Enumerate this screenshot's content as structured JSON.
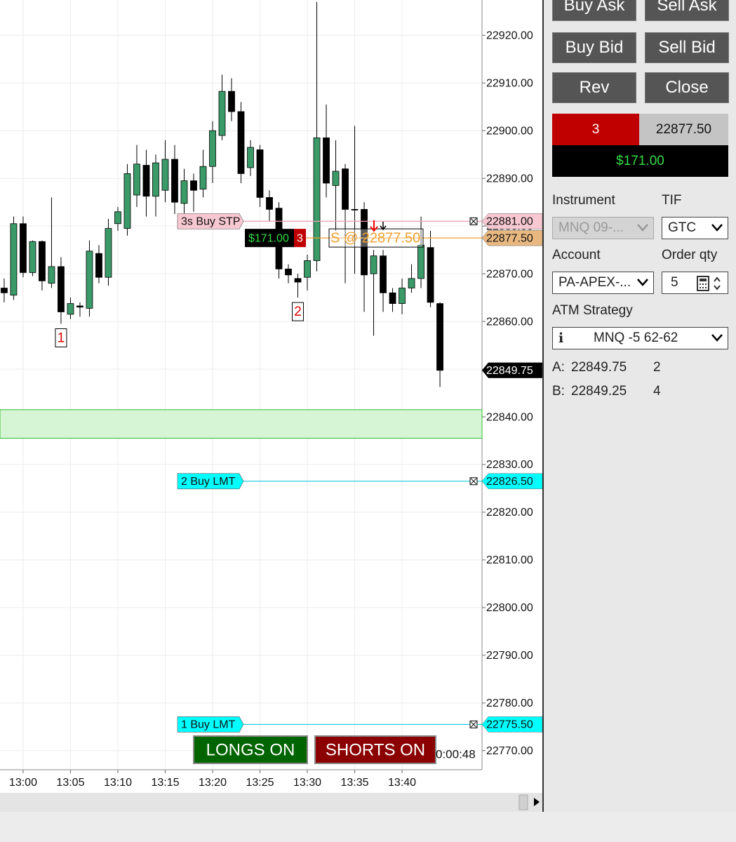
{
  "chart_data": {
    "type": "candlestick",
    "up_color": "#3a9a68",
    "down_color": "#000000",
    "open": [
      22867,
      22865.5,
      22880.5,
      22870.25,
      22876.75,
      22868,
      22871.5,
      22861.5,
      22863.25,
      22862.75,
      22874.25,
      22869.25,
      22880.5,
      22879.5,
      22886.5,
      22892.75,
      22886.25,
      22887.5,
      22894,
      22884.75,
      22889.5,
      22887.75,
      22892.5,
      22899,
      22908.25,
      22904,
      22892.25,
      22896,
      22886,
      22883.75,
      22871,
      22869,
      22869.25,
      22872.75,
      22898.5,
      22888.5,
      22892,
      22883.5,
      22883.5,
      22870,
      22873.75,
      22866,
      22863.75,
      22867,
      22869,
      22875.5,
      22863.75
    ],
    "high": [
      22869,
      22882,
      22882,
      22877,
      22877,
      22886,
      22873.5,
      22865,
      22864,
      22877,
      22876,
      22881.5,
      22884,
      22893,
      22897,
      22896,
      22895,
      22898,
      22897,
      22892,
      22891,
      22896,
      22902,
      22911.75,
      22911,
      22906,
      22898,
      22897,
      22887.5,
      22885,
      22872,
      22870,
      22874,
      22927,
      22905.5,
      22898,
      22893,
      22901,
      22885,
      22875,
      22875,
      22867,
      22869,
      22872,
      22882,
      22879,
      22864
    ],
    "low": [
      22864,
      22864.5,
      22869.25,
      22869.5,
      22866.5,
      22867,
      22859.5,
      22860.5,
      22861,
      22861,
      22868,
      22867.5,
      22879,
      22878,
      22884,
      22882,
      22882,
      22885,
      22882.5,
      22881,
      22883,
      22886,
      22889,
      22898,
      22902,
      22889,
      22890.5,
      22884,
      22881,
      22869,
      22868,
      22865,
      22866.5,
      22870.5,
      22886,
      22879,
      22868,
      22870,
      22862,
      22857,
      22862,
      22862,
      22861.5,
      22866,
      22867,
      22863,
      22846.25
    ],
    "close": [
      22866,
      22880.5,
      22870.25,
      22876.75,
      22868.5,
      22871.5,
      22862,
      22863.75,
      22863,
      22874.75,
      22869.25,
      22879.5,
      22883,
      22891,
      22893,
      22886.25,
      22893.25,
      22894,
      22885,
      22889.5,
      22887.5,
      22892.5,
      22900,
      22908.25,
      22904,
      22891,
      22896.5,
      22886,
      22883.5,
      22871,
      22869.75,
      22868.25,
      22872.75,
      22898.5,
      22889,
      22891.5,
      22883.5,
      22883.5,
      22869.75,
      22873.75,
      22866,
      22863.75,
      22867,
      22869,
      22876,
      22864,
      22849.75
    ],
    "xlim": [
      -0.44,
      50.44
    ],
    "xticks": [
      {
        "value": 2,
        "label": "13:00"
      },
      {
        "value": 7,
        "label": "13:05"
      },
      {
        "value": 12,
        "label": "13:10"
      },
      {
        "value": 17,
        "label": "13:15"
      },
      {
        "value": 22,
        "label": "13:20"
      },
      {
        "value": 27,
        "label": "13:25"
      },
      {
        "value": 32,
        "label": "13:30"
      },
      {
        "value": 37,
        "label": "13:35"
      },
      {
        "value": 42,
        "label": "13:40"
      }
    ],
    "ylim": [
      22766,
      22927.4
    ],
    "yticks": [
      {
        "value": 22920,
        "label": "22920.00"
      },
      {
        "value": 22910,
        "label": "22910.00"
      },
      {
        "value": 22900,
        "label": "22900.00"
      },
      {
        "value": 22890,
        "label": "22890.00"
      },
      {
        "value": 22880,
        "label": "22880.00"
      },
      {
        "value": 22870,
        "label": "22870.00"
      },
      {
        "value": 22860,
        "label": "22860.00"
      },
      {
        "value": 22850,
        "label": "22850.00"
      },
      {
        "value": 22840,
        "label": "22840.00"
      },
      {
        "value": 22830,
        "label": "22830.00"
      },
      {
        "value": 22820,
        "label": "22820.00"
      },
      {
        "value": 22810,
        "label": "22810.00"
      },
      {
        "value": 22800,
        "label": "22800.00"
      },
      {
        "value": 22790,
        "label": "22790.00"
      },
      {
        "value": 22780,
        "label": "22780.00"
      },
      {
        "value": 22770,
        "label": "22770.00"
      }
    ],
    "grid": true,
    "zone": [
      22835.5,
      22841.5
    ],
    "zone_color": "#d5f5d5",
    "orders": [
      {
        "name": "3s Buy STP",
        "value": 22881,
        "value_label": "22881.00",
        "color": "#f8c8d2",
        "line_color": "#f0a0b4"
      },
      {
        "name": "2 Buy LMT",
        "value": 22826.5,
        "value_label": "22826.50",
        "color": "#00ffff",
        "line_color": "#10c8e0"
      },
      {
        "name": "1 Buy LMT",
        "value": 22775.5,
        "value_label": "22775.50",
        "color": "#00ffff",
        "line_color": "#10c8e0"
      }
    ],
    "position": {
      "value": 22877.5,
      "value_label": "22877.50",
      "pnl": "$171.00",
      "quantity": 3,
      "text": "S @ 22877.50",
      "color": "#f0a030"
    },
    "last_price": {
      "value": 22849.75,
      "label": "22849.75"
    },
    "signals": [
      {
        "label": "1",
        "candle": 6
      },
      {
        "label": "2",
        "candle": 31
      }
    ],
    "toggles": [
      {
        "label": "LONGS ON",
        "color": "#006400"
      },
      {
        "label": "SHORTS ON",
        "color": "#8b0000"
      }
    ],
    "timer": "0:00:48"
  },
  "order_panel": {
    "buttons": [
      "Buy Ask",
      "Sell Ask",
      "Buy Bid",
      "Sell Bid",
      "Rev",
      "Close"
    ],
    "position": {
      "quantity": 3,
      "avg_price": "22877.50",
      "pnl": "$171.00"
    },
    "instrument_label": "Instrument",
    "instrument": "MNQ 09-...",
    "tif_label": "TIF",
    "tif": "GTC",
    "account_label": "Account",
    "account": "PA-APEX-...",
    "qty_label": "Order qty",
    "qty": 5,
    "atm_label": "ATM Strategy",
    "atm_icon": "i",
    "atm": "MNQ -5 62-62",
    "ask": {
      "label": "A:",
      "price": "22849.75",
      "size": 2
    },
    "bid": {
      "label": "B:",
      "price": "22849.25",
      "size": 4
    }
  }
}
